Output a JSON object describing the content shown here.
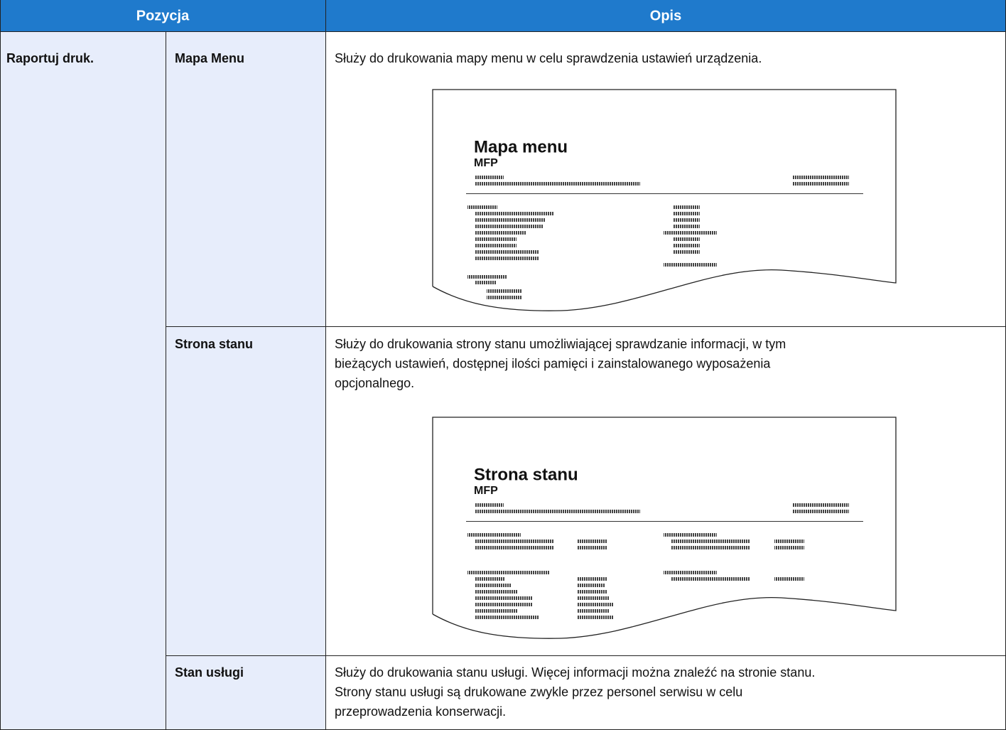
{
  "table": {
    "header": [
      "Pozycja",
      "Opis"
    ],
    "group": "Raportuj druk.",
    "rows": [
      {
        "item": "Mapa Menu",
        "description": [
          "Służy do drukowania mapy menu w celu sprawdzenia ustawień urządzenia."
        ],
        "illustration": {
          "title": "Mapa menu",
          "subtitle": "MFP"
        }
      },
      {
        "item": "Strona stanu",
        "description": [
          "Służy do drukowania strony stanu umożliwiającej sprawdzanie informacji, w tym",
          "bieżących ustawień, dostępnej ilości pamięci i zainstalowanego wyposażenia",
          "opcjonalnego."
        ],
        "illustration": {
          "title": "Strona stanu",
          "subtitle": "MFP"
        }
      },
      {
        "item": "Stan usługi",
        "description": [
          "Służy do drukowania stanu usługi. Więcej informacji można znaleźć na stronie stanu.",
          "Strony stanu usługi są drukowane zwykle przez personel serwisu w celu",
          "przeprowadzenia konserwacji."
        ]
      }
    ]
  }
}
